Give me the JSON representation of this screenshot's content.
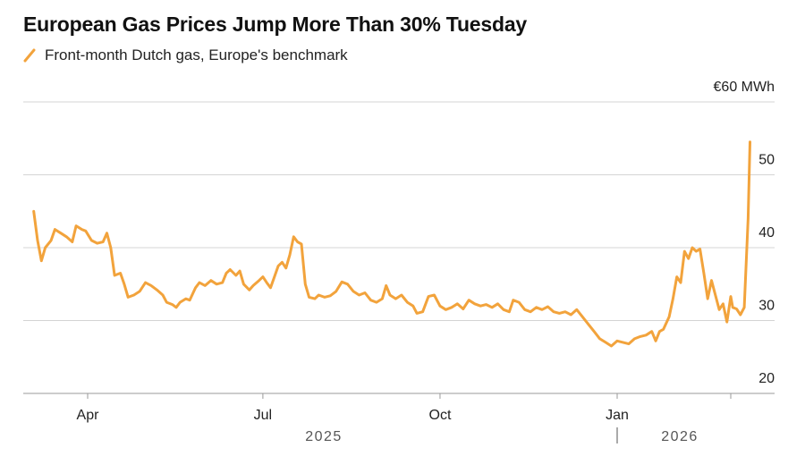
{
  "chart_data": {
    "type": "line",
    "title": "European Gas Prices Jump More Than 30% Tuesday",
    "legend": "Front-month Dutch gas, Europe's benchmark",
    "unit_label": "€60 MWh",
    "y_ticks": [
      {
        "value": 60,
        "label": "€60 MWh"
      },
      {
        "value": 50,
        "label": "50"
      },
      {
        "value": 40,
        "label": "40"
      },
      {
        "value": 30,
        "label": "30"
      },
      {
        "value": 20,
        "label": "20"
      }
    ],
    "x_ticks": [
      {
        "date": "2025-04-01",
        "label": "Apr"
      },
      {
        "date": "2025-07-01",
        "label": "Jul"
      },
      {
        "date": "2025-10-01",
        "label": "Oct"
      },
      {
        "date": "2026-01-01",
        "label": "Jan"
      }
    ],
    "years": [
      {
        "label": "2025"
      },
      {
        "label": "2026"
      }
    ],
    "ylim": [
      20,
      60
    ],
    "xlim": [
      "2025-03-01",
      "2026-02-28"
    ],
    "color": "#F2A33C",
    "series": [
      {
        "name": "Front-month Dutch gas, Europe's benchmark",
        "points": [
          [
            "2025-03-04",
            45.0
          ],
          [
            "2025-03-06",
            41.0
          ],
          [
            "2025-03-08",
            38.2
          ],
          [
            "2025-03-10",
            40.0
          ],
          [
            "2025-03-13",
            41.0
          ],
          [
            "2025-03-15",
            42.5
          ],
          [
            "2025-03-18",
            42.0
          ],
          [
            "2025-03-21",
            41.5
          ],
          [
            "2025-03-24",
            40.8
          ],
          [
            "2025-03-26",
            43.0
          ],
          [
            "2025-03-29",
            42.5
          ],
          [
            "2025-03-31",
            42.3
          ],
          [
            "2025-04-03",
            41.0
          ],
          [
            "2025-04-06",
            40.6
          ],
          [
            "2025-04-09",
            40.8
          ],
          [
            "2025-04-11",
            42.0
          ],
          [
            "2025-04-13",
            40.0
          ],
          [
            "2025-04-15",
            36.2
          ],
          [
            "2025-04-18",
            36.5
          ],
          [
            "2025-04-20",
            35.0
          ],
          [
            "2025-04-22",
            33.2
          ],
          [
            "2025-04-25",
            33.5
          ],
          [
            "2025-04-28",
            34.0
          ],
          [
            "2025-05-01",
            35.2
          ],
          [
            "2025-05-04",
            34.8
          ],
          [
            "2025-05-07",
            34.2
          ],
          [
            "2025-05-10",
            33.5
          ],
          [
            "2025-05-12",
            32.5
          ],
          [
            "2025-05-15",
            32.2
          ],
          [
            "2025-05-17",
            31.8
          ],
          [
            "2025-05-19",
            32.5
          ],
          [
            "2025-05-22",
            33.0
          ],
          [
            "2025-05-24",
            32.8
          ],
          [
            "2025-05-27",
            34.5
          ],
          [
            "2025-05-29",
            35.2
          ],
          [
            "2025-06-01",
            34.8
          ],
          [
            "2025-06-04",
            35.5
          ],
          [
            "2025-06-07",
            35.0
          ],
          [
            "2025-06-10",
            35.2
          ],
          [
            "2025-06-12",
            36.5
          ],
          [
            "2025-06-14",
            37.0
          ],
          [
            "2025-06-17",
            36.2
          ],
          [
            "2025-06-19",
            36.8
          ],
          [
            "2025-06-21",
            35.0
          ],
          [
            "2025-06-24",
            34.2
          ],
          [
            "2025-06-26",
            34.8
          ],
          [
            "2025-06-29",
            35.5
          ],
          [
            "2025-07-01",
            36.0
          ],
          [
            "2025-07-03",
            35.2
          ],
          [
            "2025-07-05",
            34.5
          ],
          [
            "2025-07-07",
            36.0
          ],
          [
            "2025-07-09",
            37.5
          ],
          [
            "2025-07-11",
            38.0
          ],
          [
            "2025-07-13",
            37.2
          ],
          [
            "2025-07-15",
            39.0
          ],
          [
            "2025-07-17",
            41.5
          ],
          [
            "2025-07-19",
            40.8
          ],
          [
            "2025-07-21",
            40.5
          ],
          [
            "2025-07-23",
            35.0
          ],
          [
            "2025-07-25",
            33.2
          ],
          [
            "2025-07-28",
            33.0
          ],
          [
            "2025-07-30",
            33.5
          ],
          [
            "2025-08-02",
            33.2
          ],
          [
            "2025-08-05",
            33.4
          ],
          [
            "2025-08-08",
            34.0
          ],
          [
            "2025-08-11",
            35.3
          ],
          [
            "2025-08-14",
            35.0
          ],
          [
            "2025-08-17",
            34.0
          ],
          [
            "2025-08-20",
            33.5
          ],
          [
            "2025-08-23",
            33.8
          ],
          [
            "2025-08-26",
            32.8
          ],
          [
            "2025-08-29",
            32.5
          ],
          [
            "2025-09-01",
            33.0
          ],
          [
            "2025-09-03",
            34.8
          ],
          [
            "2025-09-05",
            33.5
          ],
          [
            "2025-09-08",
            33.0
          ],
          [
            "2025-09-11",
            33.5
          ],
          [
            "2025-09-14",
            32.5
          ],
          [
            "2025-09-17",
            32.0
          ],
          [
            "2025-09-19",
            31.0
          ],
          [
            "2025-09-22",
            31.2
          ],
          [
            "2025-09-25",
            33.3
          ],
          [
            "2025-09-28",
            33.5
          ],
          [
            "2025-10-01",
            32.0
          ],
          [
            "2025-10-04",
            31.5
          ],
          [
            "2025-10-07",
            31.8
          ],
          [
            "2025-10-10",
            32.3
          ],
          [
            "2025-10-13",
            31.6
          ],
          [
            "2025-10-16",
            32.8
          ],
          [
            "2025-10-19",
            32.3
          ],
          [
            "2025-10-22",
            32.0
          ],
          [
            "2025-10-25",
            32.2
          ],
          [
            "2025-10-28",
            31.8
          ],
          [
            "2025-10-31",
            32.3
          ],
          [
            "2025-11-03",
            31.5
          ],
          [
            "2025-11-06",
            31.2
          ],
          [
            "2025-11-08",
            32.8
          ],
          [
            "2025-11-11",
            32.5
          ],
          [
            "2025-11-14",
            31.5
          ],
          [
            "2025-11-17",
            31.2
          ],
          [
            "2025-11-20",
            31.8
          ],
          [
            "2025-11-23",
            31.5
          ],
          [
            "2025-11-26",
            31.9
          ],
          [
            "2025-11-29",
            31.2
          ],
          [
            "2025-12-02",
            31.0
          ],
          [
            "2025-12-05",
            31.2
          ],
          [
            "2025-12-08",
            30.8
          ],
          [
            "2025-12-11",
            31.5
          ],
          [
            "2025-12-14",
            30.5
          ],
          [
            "2025-12-17",
            29.5
          ],
          [
            "2025-12-20",
            28.5
          ],
          [
            "2025-12-23",
            27.5
          ],
          [
            "2025-12-26",
            27.0
          ],
          [
            "2025-12-29",
            26.5
          ],
          [
            "2026-01-01",
            27.2
          ],
          [
            "2026-01-04",
            27.0
          ],
          [
            "2026-01-07",
            26.8
          ],
          [
            "2026-01-10",
            27.5
          ],
          [
            "2026-01-13",
            27.8
          ],
          [
            "2026-01-16",
            28.0
          ],
          [
            "2026-01-19",
            28.5
          ],
          [
            "2026-01-21",
            27.2
          ],
          [
            "2026-01-23",
            28.5
          ],
          [
            "2026-01-25",
            28.8
          ],
          [
            "2026-01-28",
            30.5
          ],
          [
            "2026-01-30",
            33.0
          ],
          [
            "2026-02-01",
            36.0
          ],
          [
            "2026-02-03",
            35.2
          ],
          [
            "2026-02-05",
            39.5
          ],
          [
            "2026-02-07",
            38.5
          ],
          [
            "2026-02-09",
            40.0
          ],
          [
            "2026-02-11",
            39.5
          ],
          [
            "2026-02-13",
            39.8
          ],
          [
            "2026-02-15",
            36.5
          ],
          [
            "2026-02-17",
            33.0
          ],
          [
            "2026-02-19",
            35.5
          ],
          [
            "2026-02-21",
            33.5
          ],
          [
            "2026-02-23",
            31.5
          ],
          [
            "2026-02-25",
            32.3
          ],
          [
            "2026-02-27",
            29.8
          ],
          [
            "2026-02-29",
            33.3
          ],
          [
            "2026-03-02",
            31.8
          ],
          [
            "2026-03-04",
            31.6
          ],
          [
            "2026-03-06",
            30.8
          ],
          [
            "2026-03-08",
            31.8
          ],
          [
            "2026-03-10",
            44.0
          ],
          [
            "2026-03-11",
            54.5
          ]
        ]
      }
    ]
  }
}
